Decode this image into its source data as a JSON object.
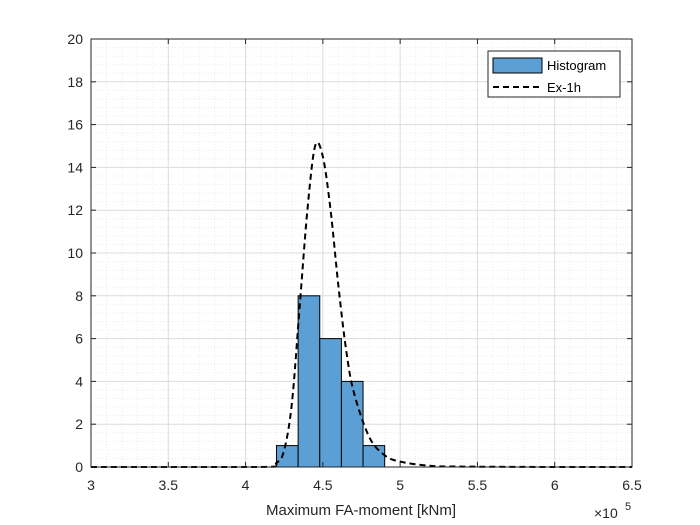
{
  "chart_data": {
    "type": "bar",
    "xlabel": "Maximum FA-moment [kNm]",
    "ylabel": "",
    "x_exponent_base": "×10",
    "x_exponent_power": "5",
    "xlim": [
      3,
      6.5
    ],
    "ylim": [
      0,
      20
    ],
    "x_ticks": [
      3,
      3.5,
      4,
      4.5,
      5,
      5.5,
      6,
      6.5
    ],
    "x_tick_labels": [
      "3",
      "3.5",
      "4",
      "4.5",
      "5",
      "5.5",
      "6",
      "6.5"
    ],
    "y_ticks": [
      0,
      2,
      4,
      6,
      8,
      10,
      12,
      14,
      16,
      18,
      20
    ],
    "y_tick_labels": [
      "0",
      "2",
      "4",
      "6",
      "8",
      "10",
      "12",
      "14",
      "16",
      "18",
      "20"
    ],
    "grid": true,
    "minor_grid": true,
    "legend_position": "top-right",
    "series": [
      {
        "name": "Histogram",
        "kind": "histogram",
        "color": "#5b9fd5",
        "edge_color": "#000000",
        "bins": [
          {
            "start": 4.2,
            "end": 4.34,
            "value": 1
          },
          {
            "start": 4.34,
            "end": 4.48,
            "value": 8
          },
          {
            "start": 4.48,
            "end": 4.62,
            "value": 6
          },
          {
            "start": 4.62,
            "end": 4.76,
            "value": 4
          },
          {
            "start": 4.76,
            "end": 4.9,
            "value": 1
          }
        ]
      },
      {
        "name": "Ex-1h",
        "kind": "line",
        "style": "dashed",
        "color": "#000000",
        "x": [
          3.0,
          4.1,
          4.2,
          4.25,
          4.3,
          4.35,
          4.4,
          4.45,
          4.5,
          4.55,
          4.6,
          4.65,
          4.7,
          4.8,
          4.9,
          5.0,
          5.2,
          5.4,
          6.0,
          6.5
        ],
        "y": [
          0,
          0,
          0.2,
          0.8,
          3.0,
          7.5,
          12.0,
          15.0,
          14.5,
          12.0,
          8.5,
          5.5,
          3.5,
          1.4,
          0.55,
          0.25,
          0.05,
          0.02,
          0,
          0
        ]
      }
    ]
  }
}
